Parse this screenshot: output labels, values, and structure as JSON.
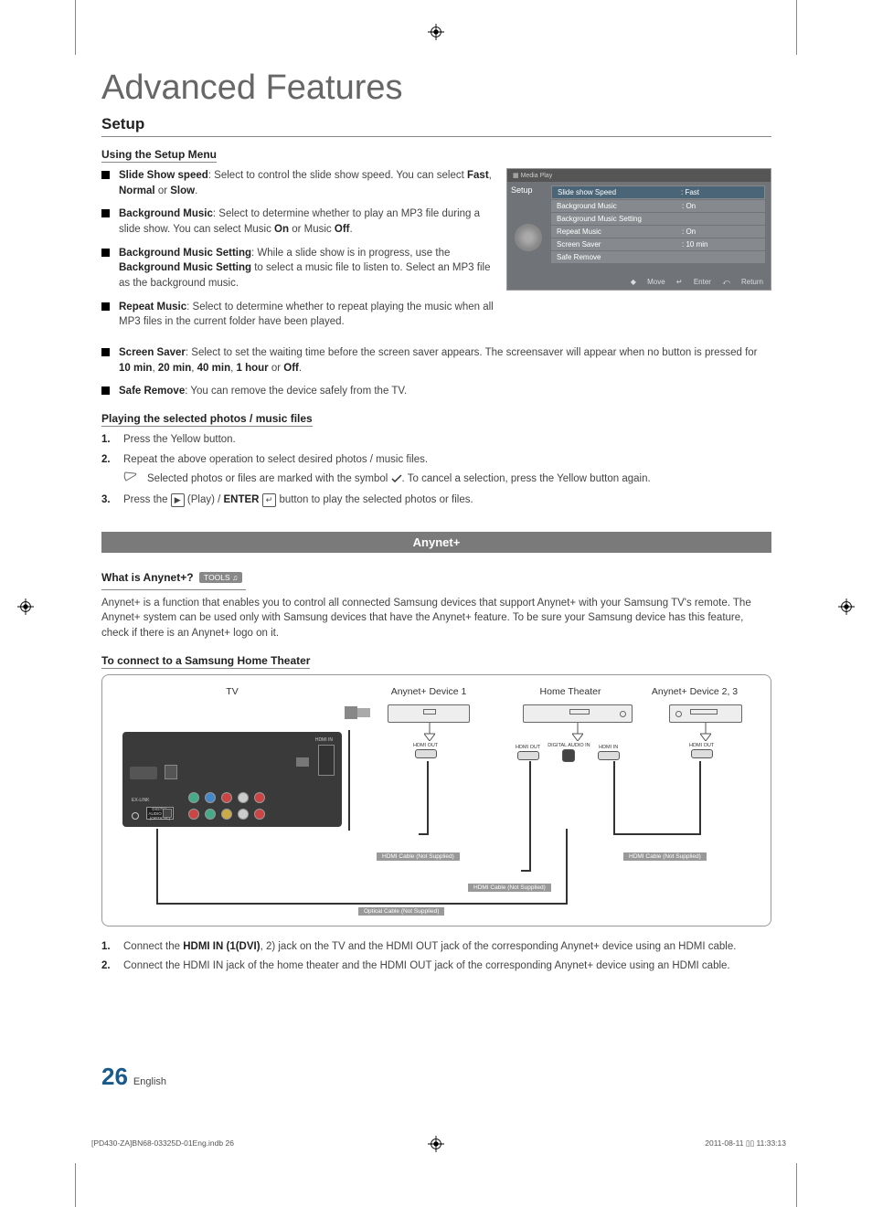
{
  "page": {
    "title": "Advanced Features",
    "section": "Setup",
    "subheading1": "Using the Setup Menu",
    "subheading2": "Playing the selected photos / music files",
    "section_bar": "Anynet+",
    "subheading3_prefix": "What is Anynet+?",
    "tools_badge": "TOOLS",
    "subheading4": "To connect to a Samsung Home Theater",
    "page_number": "26",
    "page_lang": "English"
  },
  "setup_bullets": [
    {
      "bold": "Slide Show speed",
      "text": ": Select to control the slide show speed. You can select ",
      "bold_tail": "Fast",
      "text2": ", ",
      "bold_tail2": "Normal",
      "text3": " or ",
      "bold_tail3": "Slow",
      "text4": "."
    },
    {
      "bold": "Background Music",
      "text": ": Select to determine whether to play an MP3 file during a slide show. You can select Music ",
      "bold_tail": "On",
      "text2": " or Music ",
      "bold_tail2": "Off",
      "text3": "."
    },
    {
      "bold": "Background Music Setting",
      "text": ": While a slide show is in progress, use the ",
      "bold_tail": "Background Music Setting",
      "text2": " to select a music file to listen to. Select an MP3 file as the background music."
    },
    {
      "bold": "Repeat Music",
      "text": ": Select to determine whether to repeat playing the music when all MP3 files in the current folder have been played."
    }
  ],
  "setup_bullets_wide": [
    {
      "bold": "Screen Saver",
      "text": ": Select to set the waiting time before the screen saver appears. The screensaver will appear when no button is pressed for ",
      "bold_tail": "10 min",
      "text2": ", ",
      "bold_tail2": "20 min",
      "text3": ", ",
      "bold_tail3": "40 min",
      "text4": ", ",
      "bold_tail4": "1 hour",
      "text5": " or ",
      "bold_tail5": "Off",
      "text6": "."
    },
    {
      "bold": "Safe Remove",
      "text": ": You can remove the device safely from the TV."
    }
  ],
  "osd": {
    "header": "Media Play",
    "sidebar": "Setup",
    "rows": [
      {
        "label": "Slide show Speed",
        "value": ": Fast",
        "selected": true
      },
      {
        "label": "Background Music",
        "value": ": On"
      },
      {
        "label": "Background Music Setting",
        "value": ""
      },
      {
        "label": "Repeat Music",
        "value": ": On"
      },
      {
        "label": "Screen Saver",
        "value": ": 10 min"
      },
      {
        "label": "Safe Remove",
        "value": ""
      }
    ],
    "footer": {
      "move": "Move",
      "enter": "Enter",
      "return": "Return"
    }
  },
  "playing_steps": [
    {
      "num": "1.",
      "text": "Press the Yellow button."
    },
    {
      "num": "2.",
      "text": "Repeat the above operation to select desired photos / music files."
    }
  ],
  "playing_note": "Selected photos or files are marked with the symbol ✓. To cancel a selection, press the Yellow button again.",
  "playing_step3": {
    "num": "3.",
    "pre": "Press the ",
    "play": "▶",
    "mid": " (Play) / ",
    "enter_label": "ENTER",
    "enter_icon": "↵",
    "post": " button to play the selected photos or files."
  },
  "anynet_desc": "Anynet+ is a function that enables you to control all connected Samsung devices that support Anynet+ with your Samsung TV's remote. The Anynet+ system can be used only with Samsung devices that have the Anynet+ feature. To be sure your Samsung device has this feature, check if there is an Anynet+ logo on it.",
  "diagram": {
    "tv_label": "TV",
    "dev1_label": "Anynet+ Device 1",
    "ht_label": "Home Theater",
    "dev23_label": "Anynet+ Device 2, 3",
    "hdmi_out": "HDMI OUT",
    "hdmi_in": "HDMI IN",
    "digital_audio": "DIGITAL AUDIO IN",
    "cable1": "HDMI Cable (Not Supplied)",
    "cable2": "HDMI Cable (Not Supplied)",
    "cable3": "HDMI Cable (Not Supplied)",
    "cable4": "Optical Cable (Not Supplied)"
  },
  "connect_steps": [
    {
      "num": "1.",
      "pre": "Connect the ",
      "bold": "HDMI IN (1(DVI)",
      "mid": ", 2) jack on the TV and the HDMI OUT jack of the corresponding Anynet+ device using an HDMI cable."
    },
    {
      "num": "2.",
      "pre": "Connect the HDMI IN jack of the home theater and the HDMI OUT jack of the corresponding Anynet+ device using an HDMI cable."
    }
  ],
  "footer_meta": {
    "left": "[PD430-ZA]BN68-03325D-01Eng.indb   26",
    "right": "2011-08-11   ▯▯ 11:33:13"
  }
}
